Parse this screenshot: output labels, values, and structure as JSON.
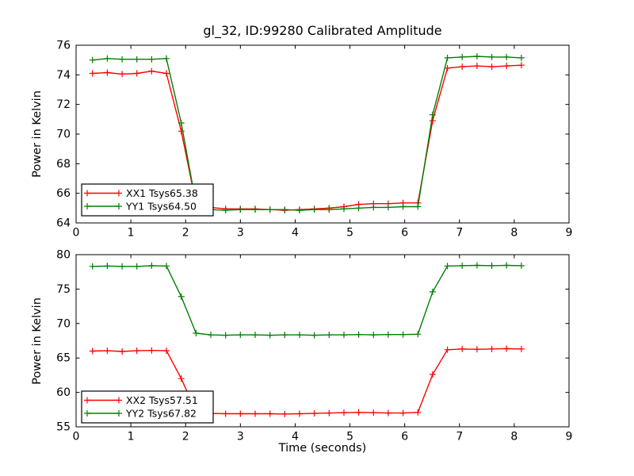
{
  "figure": {
    "background_color": "#ffffff",
    "axis_color": "#000000",
    "text_color": "#000000"
  },
  "chart_data": [
    {
      "type": "line",
      "title": "gl_32, ID:99280 Calibrated Amplitude",
      "xlabel": "",
      "ylabel": "Power in Kelvin",
      "xlim": [
        0,
        9
      ],
      "ylim": [
        64,
        76
      ],
      "xticks": [
        0,
        1,
        2,
        3,
        4,
        5,
        6,
        7,
        8,
        9
      ],
      "yticks": [
        64,
        66,
        68,
        70,
        72,
        74,
        76
      ],
      "grid": false,
      "legend_position": "lower left",
      "x": [
        0.3,
        0.57,
        0.84,
        1.11,
        1.38,
        1.65,
        1.92,
        2.19,
        2.46,
        2.73,
        3.0,
        3.27,
        3.54,
        3.81,
        4.08,
        4.35,
        4.62,
        4.89,
        5.16,
        5.43,
        5.7,
        5.97,
        6.24,
        6.51,
        6.78,
        7.05,
        7.32,
        7.59,
        7.86,
        8.13
      ],
      "series": [
        {
          "name": "XX1 Tsys65.38",
          "color": "#ff0000",
          "marker": "+",
          "values": [
            74.1,
            74.15,
            74.05,
            74.1,
            74.25,
            74.1,
            70.2,
            65.3,
            65.05,
            64.95,
            64.95,
            64.95,
            64.9,
            64.85,
            64.9,
            64.95,
            65.0,
            65.1,
            65.25,
            65.3,
            65.3,
            65.35,
            65.35,
            70.9,
            74.45,
            74.55,
            74.6,
            74.55,
            74.6,
            74.65
          ]
        },
        {
          "name": "YY1 Tsys64.50",
          "color": "#008000",
          "marker": "+",
          "values": [
            75.0,
            75.1,
            75.05,
            75.05,
            75.05,
            75.1,
            70.75,
            65.25,
            64.9,
            64.85,
            64.9,
            64.9,
            64.9,
            64.9,
            64.85,
            64.9,
            64.9,
            64.95,
            65.0,
            65.05,
            65.05,
            65.1,
            65.1,
            71.3,
            75.15,
            75.2,
            75.25,
            75.2,
            75.2,
            75.15
          ]
        }
      ]
    },
    {
      "type": "line",
      "title": "",
      "xlabel": "Time (seconds)",
      "ylabel": "Power in Kelvin",
      "xlim": [
        0,
        9
      ],
      "ylim": [
        55,
        80
      ],
      "xticks": [
        0,
        1,
        2,
        3,
        4,
        5,
        6,
        7,
        8,
        9
      ],
      "yticks": [
        55,
        60,
        65,
        70,
        75,
        80
      ],
      "grid": false,
      "legend_position": "lower left",
      "x": [
        0.3,
        0.57,
        0.84,
        1.11,
        1.38,
        1.65,
        1.92,
        2.19,
        2.46,
        2.73,
        3.0,
        3.27,
        3.54,
        3.81,
        4.08,
        4.35,
        4.62,
        4.89,
        5.16,
        5.43,
        5.7,
        5.97,
        6.24,
        6.51,
        6.78,
        7.05,
        7.32,
        7.59,
        7.86,
        8.13
      ],
      "series": [
        {
          "name": "XX2 Tsys57.51",
          "color": "#ff0000",
          "marker": "+",
          "values": [
            66.0,
            66.05,
            65.95,
            66.05,
            66.1,
            66.05,
            62.0,
            57.2,
            56.95,
            56.9,
            56.9,
            56.9,
            56.9,
            56.85,
            56.9,
            56.95,
            57.0,
            57.05,
            57.1,
            57.05,
            57.0,
            57.0,
            57.1,
            62.6,
            66.2,
            66.3,
            66.25,
            66.3,
            66.35,
            66.3
          ]
        },
        {
          "name": "YY2 Tsys67.82",
          "color": "#008000",
          "marker": "+",
          "values": [
            78.3,
            78.35,
            78.3,
            78.3,
            78.4,
            78.35,
            73.9,
            68.6,
            68.35,
            68.3,
            68.35,
            68.35,
            68.3,
            68.35,
            68.35,
            68.3,
            68.35,
            68.35,
            68.4,
            68.35,
            68.4,
            68.4,
            68.45,
            74.6,
            78.35,
            78.4,
            78.45,
            78.4,
            78.45,
            78.4
          ]
        }
      ]
    }
  ]
}
